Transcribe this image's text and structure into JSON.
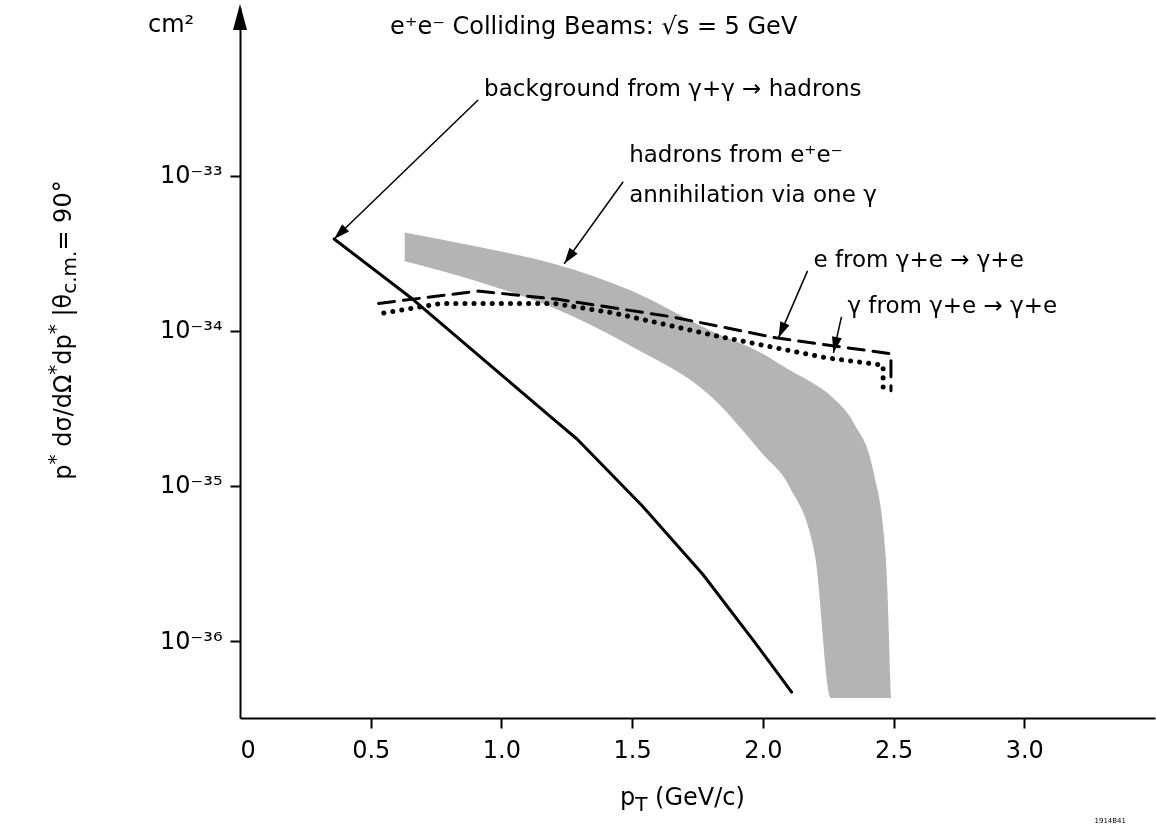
{
  "chart_data": {
    "type": "line",
    "title": "e⁺e⁻ Colliding Beams: √s = 5 GeV",
    "xlabel": "p$_{T}$ (GeV/c)",
    "ylabel": "p$^{*}$ dσ/dΩ$^{*}$dp$^{*}$ |θ$_{c.m.}$= 90°",
    "log": "y",
    "xlim": [
      0,
      3.5
    ],
    "xticks": [
      0,
      0.5,
      {
        "value": 1,
        "label": "1.0"
      },
      1.5,
      {
        "value": 2,
        "label": "2.0"
      },
      2.5,
      {
        "value": 3,
        "label": "3.0"
      }
    ],
    "ylim": [
      3.2e-37,
      1.2e-32
    ],
    "yticks": [
      {
        "value": 1e-36,
        "label": "10⁻³⁶"
      },
      {
        "value": 1e-35,
        "label": "10⁻³⁵"
      },
      {
        "value": 1e-34,
        "label": "10⁻³⁴"
      },
      {
        "value": 1e-33,
        "label": "10⁻³³"
      }
    ],
    "series": [
      {
        "type": "area",
        "color": "#b4b4b4",
        "x": [
          0.63,
          0.9,
          1.2,
          1.5,
          1.8,
          2.0,
          2.1,
          2.2,
          2.26,
          2.35,
          2.42,
          2.47,
          2.49
        ],
        "values": [
          null,
          null,
          null,
          null,
          null,
          null,
          null,
          null,
          null,
          null,
          null,
          null,
          null
        ],
        "upper": [
          4.3e-34,
          3.5e-34,
          2.7e-34,
          1.8e-34,
          1e-34,
          7.1e-35,
          5.6e-35,
          4.5e-35,
          3.8e-35,
          2.5e-35,
          1.3e-35,
          3.5e-36,
          4.3e-37
        ],
        "lower": [
          2.8e-34,
          2.1e-34,
          1.4e-34,
          7.9e-35,
          3.8e-35,
          1.6e-35,
          1e-35,
          3.5e-36,
          4.3e-37,
          4.3e-37,
          4.3e-37,
          4.3e-37,
          4.3e-37
        ]
      },
      {
        "color": "#000000",
        "line_style": "solid",
        "x": [
          0.36,
          0.66,
          1.0,
          1.21,
          1.29,
          1.54,
          1.77,
          1.97,
          2.11
        ],
        "values": [
          3.9e-34,
          1.6e-34,
          5.2e-35,
          2.6e-35,
          2e-35,
          7.4e-36,
          2.7e-36,
          9.8e-37,
          4.7e-37
        ]
      },
      {
        "color": "#000000",
        "line_style": "dashed",
        "x": [
          0.53,
          0.91,
          1.21,
          1.65,
          2.05,
          2.49,
          2.49
        ],
        "values": [
          1.5e-34,
          1.8e-34,
          1.6e-34,
          1.23e-34,
          9e-35,
          7.1e-35,
          4.1e-35
        ]
      },
      {
        "color": "#000000",
        "line_style": "dotted",
        "x": [
          0.55,
          0.77,
          1.2,
          1.43,
          1.83,
          2.24,
          2.46,
          2.46
        ],
        "values": [
          1.3e-34,
          1.5e-34,
          1.5e-34,
          1.3e-34,
          9.2e-35,
          6.7e-35,
          6e-35,
          4.2e-35
        ]
      }
    ],
    "annotations": [
      "cm²",
      {
        "text": "background from γ+γ → hadrons",
        "x": 0.36,
        "y": 3.9e-34
      },
      {
        "text": "hadrons from e⁺e⁻\nannihilation via one γ",
        "x": 1.24,
        "y": 2.7e-34
      },
      {
        "text": "e from γ+e → γ+e",
        "x": 2.06,
        "y": 9e-35
      },
      {
        "text": "γ from γ+e → γ+e",
        "x": 2.27,
        "y": 7.2e-35
      },
      "1914B41"
    ]
  }
}
